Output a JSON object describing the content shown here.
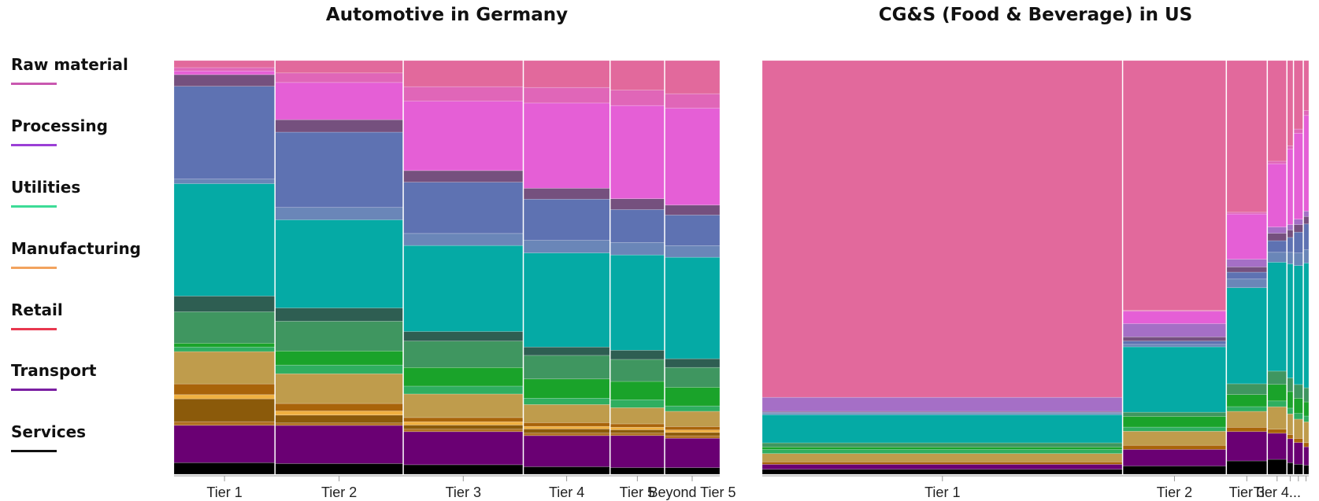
{
  "legend": [
    {
      "label": "Raw material",
      "color": "#c958b0"
    },
    {
      "label": "Processing",
      "color": "#9b3fd6"
    },
    {
      "label": "Utilities",
      "color": "#3ddc97"
    },
    {
      "label": "Manufacturing",
      "color": "#f2a35e"
    },
    {
      "label": "Retail",
      "color": "#e8384f"
    },
    {
      "label": "Transport",
      "color": "#7b1fa2"
    },
    {
      "label": "Services",
      "color": "#111111"
    }
  ],
  "chart_data": [
    {
      "type": "marimekko",
      "title": "Automotive in Germany",
      "categories": [
        "Tier 1",
        "Tier 2",
        "Tier 3",
        "Tier 4",
        "Tier 5",
        "Beyond Tier 5"
      ],
      "widths": [
        18.5,
        23.5,
        22,
        15.9,
        10,
        10.1
      ],
      "segments": [
        {
          "color": "#000000",
          "values": [
            2.8,
            2.6,
            2.3,
            1.8,
            1.6,
            1.6
          ]
        },
        {
          "color": "#6a0073",
          "values": [
            9.0,
            9.2,
            8.0,
            7.4,
            7.7,
            7.1
          ]
        },
        {
          "color": "#b07020",
          "values": [
            0.9,
            0.6,
            0.6,
            0.6,
            0.6,
            0.6
          ]
        },
        {
          "color": "#8b5a0a",
          "values": [
            5.5,
            1.9,
            1.0,
            1.0,
            0.8,
            0.8
          ]
        },
        {
          "color": "#f0b040",
          "values": [
            1.0,
            1.0,
            0.8,
            0.6,
            0.6,
            0.6
          ]
        },
        {
          "color": "#a9640a",
          "values": [
            2.6,
            1.8,
            1.0,
            0.9,
            0.8,
            0.8
          ]
        },
        {
          "color": "#bf9c4c",
          "values": [
            7.8,
            7.2,
            5.7,
            4.3,
            3.9,
            3.7
          ]
        },
        {
          "color": "#2fae60",
          "values": [
            1.1,
            2.1,
            1.9,
            1.5,
            1.9,
            1.3
          ]
        },
        {
          "color": "#1aa32a",
          "values": [
            0.9,
            3.4,
            4.5,
            4.6,
            4.4,
            4.5
          ]
        },
        {
          "color": "#3f9660",
          "values": [
            7.6,
            7.2,
            6.4,
            5.6,
            5.3,
            4.8
          ]
        },
        {
          "color": "#2e5e52",
          "values": [
            3.8,
            3.2,
            2.3,
            2.0,
            2.2,
            2.1
          ]
        },
        {
          "color": "#05aaa5",
          "values": [
            27.1,
            21.3,
            20.8,
            22.4,
            22.9,
            24.5
          ]
        },
        {
          "color": "#6a86b8",
          "values": [
            1.1,
            3.0,
            2.9,
            3.0,
            3.0,
            2.8
          ]
        },
        {
          "color": "#5e72b2",
          "values": [
            22.4,
            18.2,
            12.4,
            9.8,
            7.9,
            7.4
          ]
        },
        {
          "color": "#75507e",
          "values": [
            2.8,
            3.0,
            2.8,
            2.6,
            2.6,
            2.4
          ]
        },
        {
          "color": "#e55fd6",
          "values": [
            0.9,
            9.0,
            16.8,
            20.3,
            22.4,
            23.4
          ]
        },
        {
          "color": "#e066b8",
          "values": [
            0.8,
            2.3,
            3.5,
            3.7,
            3.7,
            3.5
          ]
        },
        {
          "color": "#e2699c",
          "values": [
            1.7,
            3.0,
            6.3,
            6.4,
            7.1,
            8.0
          ]
        }
      ]
    },
    {
      "type": "marimekko",
      "title": "CG&S (Food & Beverage) in US",
      "categories": [
        "Tier 1",
        "Tier 2",
        "Tier 3",
        "Tier 4...",
        "",
        "",
        ""
      ],
      "widths": [
        66,
        19,
        7.5,
        3.6,
        1.2,
        1.8,
        1.0
      ],
      "segments": [
        {
          "color": "#000000",
          "values": [
            1.2,
            2.0,
            3.1,
            3.6,
            2.8,
            2.4,
            2.2
          ]
        },
        {
          "color": "#6a0073",
          "values": [
            1.2,
            4.0,
            6.8,
            6.3,
            5.8,
            5.2,
            4.4
          ]
        },
        {
          "color": "#a9640a",
          "values": [
            0.6,
            1.0,
            1.0,
            1.0,
            1.0,
            1.0,
            1.0
          ]
        },
        {
          "color": "#bf9c4c",
          "values": [
            2.0,
            3.4,
            3.7,
            5.4,
            5.0,
            4.6,
            5.0
          ]
        },
        {
          "color": "#2fae60",
          "values": [
            1.0,
            1.0,
            1.1,
            1.4,
            1.4,
            1.4,
            1.4
          ]
        },
        {
          "color": "#1aa32a",
          "values": [
            0.6,
            2.6,
            2.8,
            4.0,
            4.0,
            3.6,
            3.4
          ]
        },
        {
          "color": "#3f9660",
          "values": [
            1.0,
            1.0,
            2.5,
            3.2,
            3.3,
            3.3,
            3.4
          ]
        },
        {
          "color": "#05aaa5",
          "values": [
            6.8,
            15.8,
            22.3,
            26.3,
            27.6,
            28.5,
            30.0
          ]
        },
        {
          "color": "#6a86b8",
          "values": [
            0.4,
            0.6,
            2.0,
            2.4,
            2.8,
            3.0,
            3.2
          ]
        },
        {
          "color": "#5e72b2",
          "values": [
            0.2,
            0.8,
            1.6,
            2.8,
            3.6,
            5.0,
            6.2
          ]
        },
        {
          "color": "#75507e",
          "values": [
            0.2,
            1.0,
            1.2,
            1.8,
            1.8,
            1.8,
            1.8
          ]
        },
        {
          "color": "#a56fc6",
          "values": [
            3.4,
            3.2,
            1.8,
            1.5,
            1.3,
            1.3,
            1.3
          ]
        },
        {
          "color": "#e55fd6",
          "values": [
            0,
            3.0,
            10.5,
            15.3,
            18.3,
            20.6,
            23.0
          ]
        },
        {
          "color": "#e066b8",
          "values": [
            0,
            0.2,
            0.4,
            0.6,
            0.8,
            1.0,
            1.2
          ]
        },
        {
          "color": "#e2699c",
          "values": [
            81.4,
            60.4,
            35.2,
            24.3,
            20.6,
            16.4,
            12.0
          ]
        }
      ]
    }
  ]
}
